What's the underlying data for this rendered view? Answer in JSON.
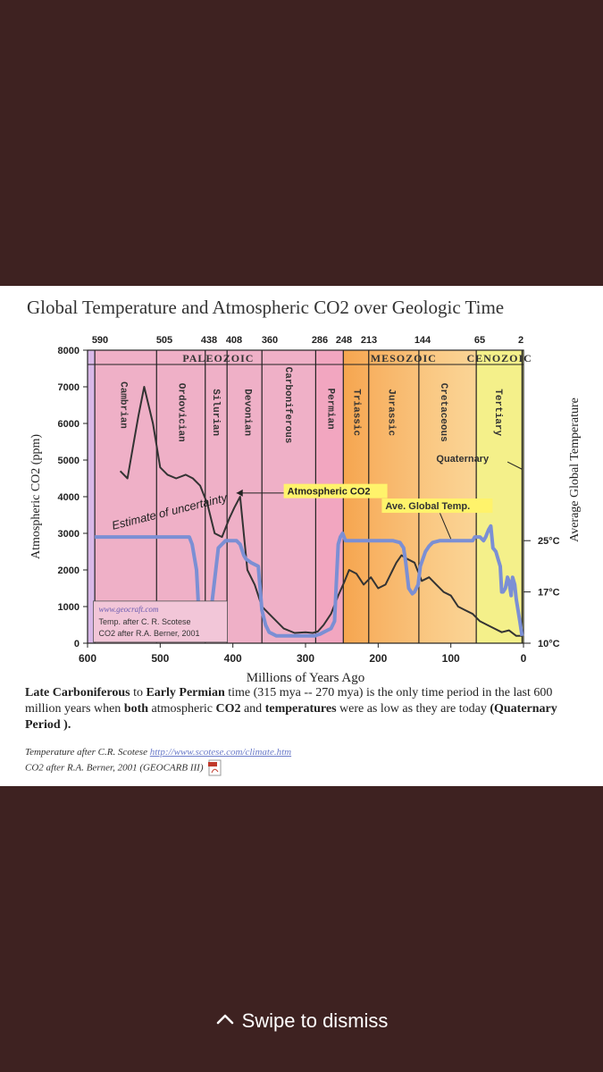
{
  "chart_data": {
    "type": "line",
    "title": "Global Temperature and Atmospheric CO2 over Geologic Time",
    "xlabel": "Millions of Years Ago",
    "ylabel": "Atmospheric CO2 (ppm)",
    "y2label": "Average Global Temperature",
    "xlim": [
      600,
      0
    ],
    "ylim": [
      0,
      8000
    ],
    "x_ticks": [
      600,
      500,
      400,
      300,
      200,
      100,
      0
    ],
    "y_ticks": [
      0,
      1000,
      2000,
      3000,
      4000,
      5000,
      6000,
      7000,
      8000
    ],
    "top_ticks": [
      {
        "label": "590",
        "x": 590
      },
      {
        "label": "505",
        "x": 505
      },
      {
        "label": "438",
        "x": 438
      },
      {
        "label": "408",
        "x": 408
      },
      {
        "label": "360",
        "x": 360
      },
      {
        "label": "286",
        "x": 286
      },
      {
        "label": "248",
        "x": 248
      },
      {
        "label": "213",
        "x": 213
      },
      {
        "label": "144",
        "x": 144
      },
      {
        "label": "65",
        "x": 65
      },
      {
        "label": "2",
        "x": 2
      }
    ],
    "temp_ticks": [
      {
        "label": "25°C",
        "co2_level": 2800
      },
      {
        "label": "17°C",
        "co2_level": 1400
      },
      {
        "label": "10°C",
        "co2_level": 0
      }
    ],
    "eras": [
      {
        "name": "PALEOZOIC",
        "x": 420
      },
      {
        "name": "MESOZOIC",
        "x": 165
      },
      {
        "name": "CENOZOIC",
        "x": 33
      }
    ],
    "periods": [
      {
        "name": "Cambrian",
        "start": 590,
        "end": 505,
        "color": "#efb0c7",
        "label_x": 549,
        "label_y": 6500
      },
      {
        "name": "Ordovician",
        "start": 505,
        "end": 438,
        "color": "#efb0c7",
        "label_x": 469,
        "label_y": 6300
      },
      {
        "name": "Silurian",
        "start": 438,
        "end": 408,
        "color": "#efb0c7",
        "label_x": 422,
        "label_y": 6300
      },
      {
        "name": "Devonian",
        "start": 408,
        "end": 360,
        "color": "#efb0c7",
        "label_x": 378,
        "label_y": 6300
      },
      {
        "name": "Carboniferous",
        "start": 360,
        "end": 286,
        "color": "#efb0c7",
        "label_x": 322,
        "label_y": 6500
      },
      {
        "name": "Permian",
        "start": 286,
        "end": 248,
        "color": "#f2a6c0",
        "label_x": 264,
        "label_y": 6400
      },
      {
        "name": "Triassic",
        "start": 248,
        "end": 213,
        "color": "#f7b96e",
        "label_x": 228,
        "label_y": 6300
      },
      {
        "name": "Jurassic",
        "start": 213,
        "end": 144,
        "color": "#f9c27e",
        "label_x": 180,
        "label_y": 6300
      },
      {
        "name": "Cretaceous",
        "start": 144,
        "end": 65,
        "color": "#fad08e",
        "label_x": 108,
        "label_y": 6300
      },
      {
        "name": "Tertiary",
        "start": 65,
        "end": 2,
        "color": "#f4f08a",
        "label_x": 33,
        "label_y": 6300
      }
    ],
    "series": [
      {
        "name": "Atmospheric CO2",
        "color": "#333333",
        "x": [
          555,
          545,
          538,
          530,
          522,
          510,
          500,
          490,
          478,
          465,
          455,
          445,
          435,
          425,
          415,
          405,
          398,
          390,
          380,
          370,
          360,
          345,
          330,
          315,
          300,
          290,
          283,
          275,
          265,
          255,
          246,
          240,
          230,
          220,
          210,
          200,
          190,
          180,
          175,
          168,
          160,
          150,
          140,
          130,
          120,
          110,
          100,
          90,
          80,
          70,
          60,
          50,
          40,
          30,
          20,
          10,
          2
        ],
        "y": [
          4700,
          4500,
          5300,
          6200,
          7000,
          6000,
          4800,
          4600,
          4500,
          4600,
          4500,
          4300,
          3800,
          3000,
          2900,
          3400,
          3700,
          4000,
          2000,
          1600,
          1000,
          700,
          400,
          280,
          300,
          280,
          320,
          500,
          800,
          1300,
          1700,
          2000,
          1900,
          1600,
          1800,
          1500,
          1600,
          2000,
          2200,
          2400,
          2300,
          2200,
          1700,
          1800,
          1600,
          1400,
          1300,
          1000,
          900,
          800,
          600,
          500,
          400,
          300,
          350,
          200,
          200
        ]
      },
      {
        "name": "Ave. Global Temp.",
        "color": "#7b8fd4",
        "x": [
          590,
          560,
          520,
          460,
          456,
          450,
          447,
          444,
          440,
          437,
          435,
          430,
          420,
          410,
          400,
          395,
          390,
          385,
          382,
          375,
          365,
          363,
          360,
          355,
          350,
          340,
          320,
          300,
          287,
          285,
          280,
          275,
          270,
          265,
          260,
          258,
          255,
          252,
          249,
          247,
          245,
          240,
          230,
          210,
          190,
          180,
          170,
          165,
          162,
          158,
          153,
          150,
          145,
          142,
          135,
          130,
          125,
          115,
          105,
          95,
          90,
          80,
          70,
          67,
          65,
          60,
          55,
          52,
          50,
          48,
          45,
          42,
          40,
          38,
          35,
          32,
          30,
          28,
          25,
          22,
          20,
          17,
          15,
          12,
          10,
          5,
          2
        ],
        "y": [
          2900,
          2900,
          2900,
          2900,
          2700,
          2000,
          900,
          300,
          150,
          150,
          200,
          900,
          2600,
          2800,
          2800,
          2800,
          2700,
          2400,
          2300,
          2200,
          2100,
          1600,
          900,
          500,
          300,
          200,
          200,
          200,
          200,
          220,
          250,
          300,
          350,
          400,
          600,
          1500,
          2700,
          2900,
          3000,
          2900,
          2800,
          2800,
          2800,
          2800,
          2800,
          2800,
          2750,
          2600,
          2200,
          1500,
          1350,
          1400,
          1600,
          2100,
          2500,
          2650,
          2750,
          2800,
          2800,
          2800,
          2800,
          2800,
          2800,
          2900,
          2900,
          2900,
          2800,
          2900,
          3000,
          3100,
          3200,
          2600,
          2550,
          2500,
          2300,
          2100,
          1400,
          1400,
          1500,
          1800,
          1700,
          1300,
          1800,
          1600,
          1200,
          600,
          200
        ]
      }
    ],
    "annotations": [
      {
        "text": "Estimate of uncertainty"
      },
      {
        "text": "Atmospheric CO2"
      },
      {
        "text": "Ave. Global Temp."
      },
      {
        "text": "Quaternary"
      }
    ],
    "credit_box": [
      "www.geocraft.com",
      "Temp. after C. R. Scotese",
      "CO2 after R.A. Berner, 2001"
    ]
  },
  "caption": {
    "parts": [
      {
        "text": "Late Carboniferous",
        "bold": true
      },
      {
        "text": " to ",
        "bold": false
      },
      {
        "text": "Early Permian",
        "bold": true
      },
      {
        "text": " time (315 mya -- 270 mya) is the only time period in the last 600 million years when ",
        "bold": false
      },
      {
        "text": "both",
        "bold": true
      },
      {
        "text": " atmospheric ",
        "bold": false
      },
      {
        "text": "CO2",
        "bold": true
      },
      {
        "text": " and ",
        "bold": false
      },
      {
        "text": "temperatures",
        "bold": true
      },
      {
        "text": " were as low as they are today ",
        "bold": false
      },
      {
        "text": "(Quaternary Period ).",
        "bold": true
      }
    ]
  },
  "credits": {
    "temp_prefix": "Temperature after C.R. Scotese ",
    "temp_link": "http://www.scotese.com/climate.htm",
    "co2": "CO2 after R.A. Berner, 2001 (GEOCARB III)"
  },
  "overlay": {
    "dismiss_label": "Swipe to dismiss",
    "dismiss_icon": "chevron-up-icon"
  },
  "colors": {
    "background": "#3e2221",
    "co2_line": "#333333",
    "temp_line": "#7b8fd4"
  }
}
